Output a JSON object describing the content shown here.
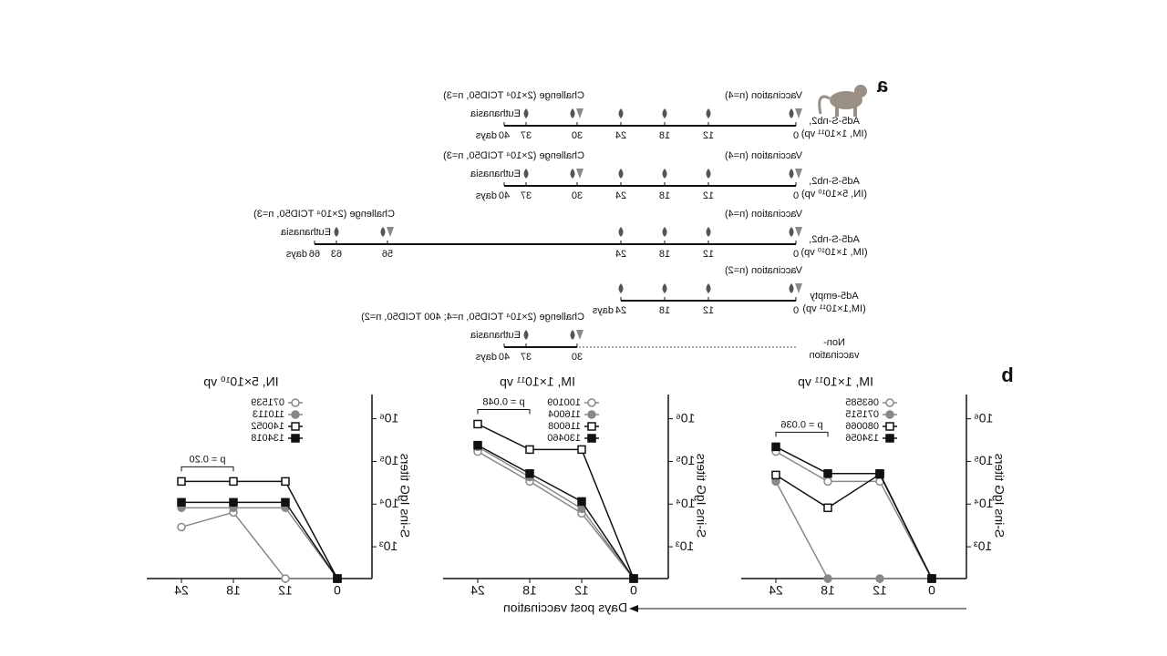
{
  "panel_a": {
    "label": "a",
    "rows": [
      {
        "treatment": [
          "Ad5-S-nb2,",
          "(IM, 1×10¹¹ vp)"
        ],
        "vaccination": "Vaccination (n=4)",
        "challenge": "Challenge (2×10⁴ TCID50, n=3)",
        "euthanasia": "Euthanasia",
        "ticks": [
          0,
          12,
          18,
          24,
          30,
          37,
          40
        ],
        "unit": "days"
      },
      {
        "treatment": [
          "Ad5-S-nb2,",
          "(IN, 5×10¹⁰ vp)"
        ],
        "vaccination": "Vaccination (n=4)",
        "challenge": "Challenge (2×10⁴ TCID50, n=3)",
        "euthanasia": "Euthanasia",
        "ticks": [
          0,
          12,
          18,
          24,
          30,
          37,
          40
        ],
        "unit": "days"
      },
      {
        "treatment": [
          "Ad5-S-nb2,",
          "(IM, 1×10¹⁰ vp)"
        ],
        "vaccination": "Vaccination (n=4)",
        "challenge": "Challenge (2×10⁴ TCID50, n=3)",
        "euthanasia": "Euthanasia",
        "ticks": [
          0,
          12,
          18,
          24,
          56,
          63,
          66
        ],
        "unit": "days"
      },
      {
        "treatment": [
          "Ad5-empty",
          "(IM,1×10¹¹ vp)"
        ],
        "vaccination": "Vaccination (n=2)",
        "ticks": [
          0,
          12,
          18,
          24
        ],
        "unit": "days"
      },
      {
        "treatment": [
          "Non-",
          "vaccination"
        ],
        "challenge": "Challenge (2×10⁴ TCID50, n=4; 400 TCID50, n=2)",
        "euthanasia": "Euthanasia",
        "ticks": [
          30,
          37,
          40
        ],
        "unit": "days"
      }
    ]
  },
  "panel_b": {
    "label": "b",
    "x_label": "Days post vaccination"
  },
  "chart_data": [
    {
      "type": "line",
      "title": "IM, 1×10¹¹ vp",
      "y_label": "S-ins IgG titers",
      "categories": [
        "0",
        "12",
        "18",
        "24"
      ],
      "log_scale": true,
      "ylim": [
        180,
        3700000
      ],
      "yticks": [
        {
          "value": 1000,
          "label": "10³"
        },
        {
          "value": 10000,
          "label": "10⁴"
        },
        {
          "value": 100000,
          "label": "10⁵"
        },
        {
          "value": 1000000,
          "label": "10⁶"
        }
      ],
      "annotation": "p = 0.036",
      "series": [
        {
          "name": "063585",
          "color": "#888888",
          "marker": "circle",
          "filled": false,
          "values": [
            180,
            34000,
            34000,
            170000
          ]
        },
        {
          "name": "071515",
          "color": "#888888",
          "marker": "circle",
          "filled": true,
          "values": [
            180,
            180,
            180,
            34000
          ]
        },
        {
          "name": "080066",
          "color": "#111111",
          "marker": "square",
          "filled": false,
          "values": [
            180,
            50000,
            8200,
            48000
          ]
        },
        {
          "name": "134056",
          "color": "#111111",
          "marker": "square",
          "filled": true,
          "values": [
            180,
            52000,
            52000,
            220000
          ]
        }
      ]
    },
    {
      "type": "line",
      "title": "IM, 1×10¹¹ vp",
      "y_label": "S-ins IgG titers",
      "categories": [
        "0",
        "12",
        "18",
        "24"
      ],
      "log_scale": true,
      "ylim": [
        180,
        3700000
      ],
      "yticks": [
        {
          "value": 1000,
          "label": "10³"
        },
        {
          "value": 10000,
          "label": "10⁴"
        },
        {
          "value": 100000,
          "label": "10⁵"
        },
        {
          "value": 1000000,
          "label": "10⁶"
        }
      ],
      "annotation": "p = 0.048",
      "series": [
        {
          "name": "100109",
          "color": "#888888",
          "marker": "circle",
          "filled": false,
          "values": [
            180,
            6100,
            34000,
            170000
          ]
        },
        {
          "name": "116004",
          "color": "#888888",
          "marker": "circle",
          "filled": true,
          "values": [
            180,
            7800,
            43000,
            220000
          ]
        },
        {
          "name": "116008",
          "color": "#111111",
          "marker": "square",
          "filled": false,
          "values": [
            180,
            190000,
            190000,
            750000
          ]
        },
        {
          "name": "130460",
          "color": "#111111",
          "marker": "square",
          "filled": true,
          "values": [
            180,
            11500,
            52000,
            240000
          ]
        }
      ]
    },
    {
      "type": "line",
      "title": "IN, 5×10¹⁰ vp",
      "y_label": "S-ins IgG titers",
      "categories": [
        "0",
        "12",
        "18",
        "24"
      ],
      "log_scale": true,
      "ylim": [
        180,
        3700000
      ],
      "yticks": [
        {
          "value": 1000,
          "label": "10³"
        },
        {
          "value": 10000,
          "label": "10⁴"
        },
        {
          "value": 100000,
          "label": "10⁵"
        },
        {
          "value": 1000000,
          "label": "10⁶"
        }
      ],
      "annotation": "p = 0.20",
      "series": [
        {
          "name": "071539",
          "color": "#888888",
          "marker": "circle",
          "filled": false,
          "values": [
            180,
            180,
            6400,
            2900
          ]
        },
        {
          "name": "110113",
          "color": "#888888",
          "marker": "circle",
          "filled": true,
          "values": [
            180,
            8200,
            8200,
            8200
          ]
        },
        {
          "name": "140052",
          "color": "#111111",
          "marker": "square",
          "filled": false,
          "values": [
            180,
            34000,
            34000,
            34000
          ]
        },
        {
          "name": "134018",
          "color": "#111111",
          "marker": "square",
          "filled": true,
          "values": [
            180,
            11000,
            11000,
            11000
          ]
        }
      ]
    }
  ]
}
